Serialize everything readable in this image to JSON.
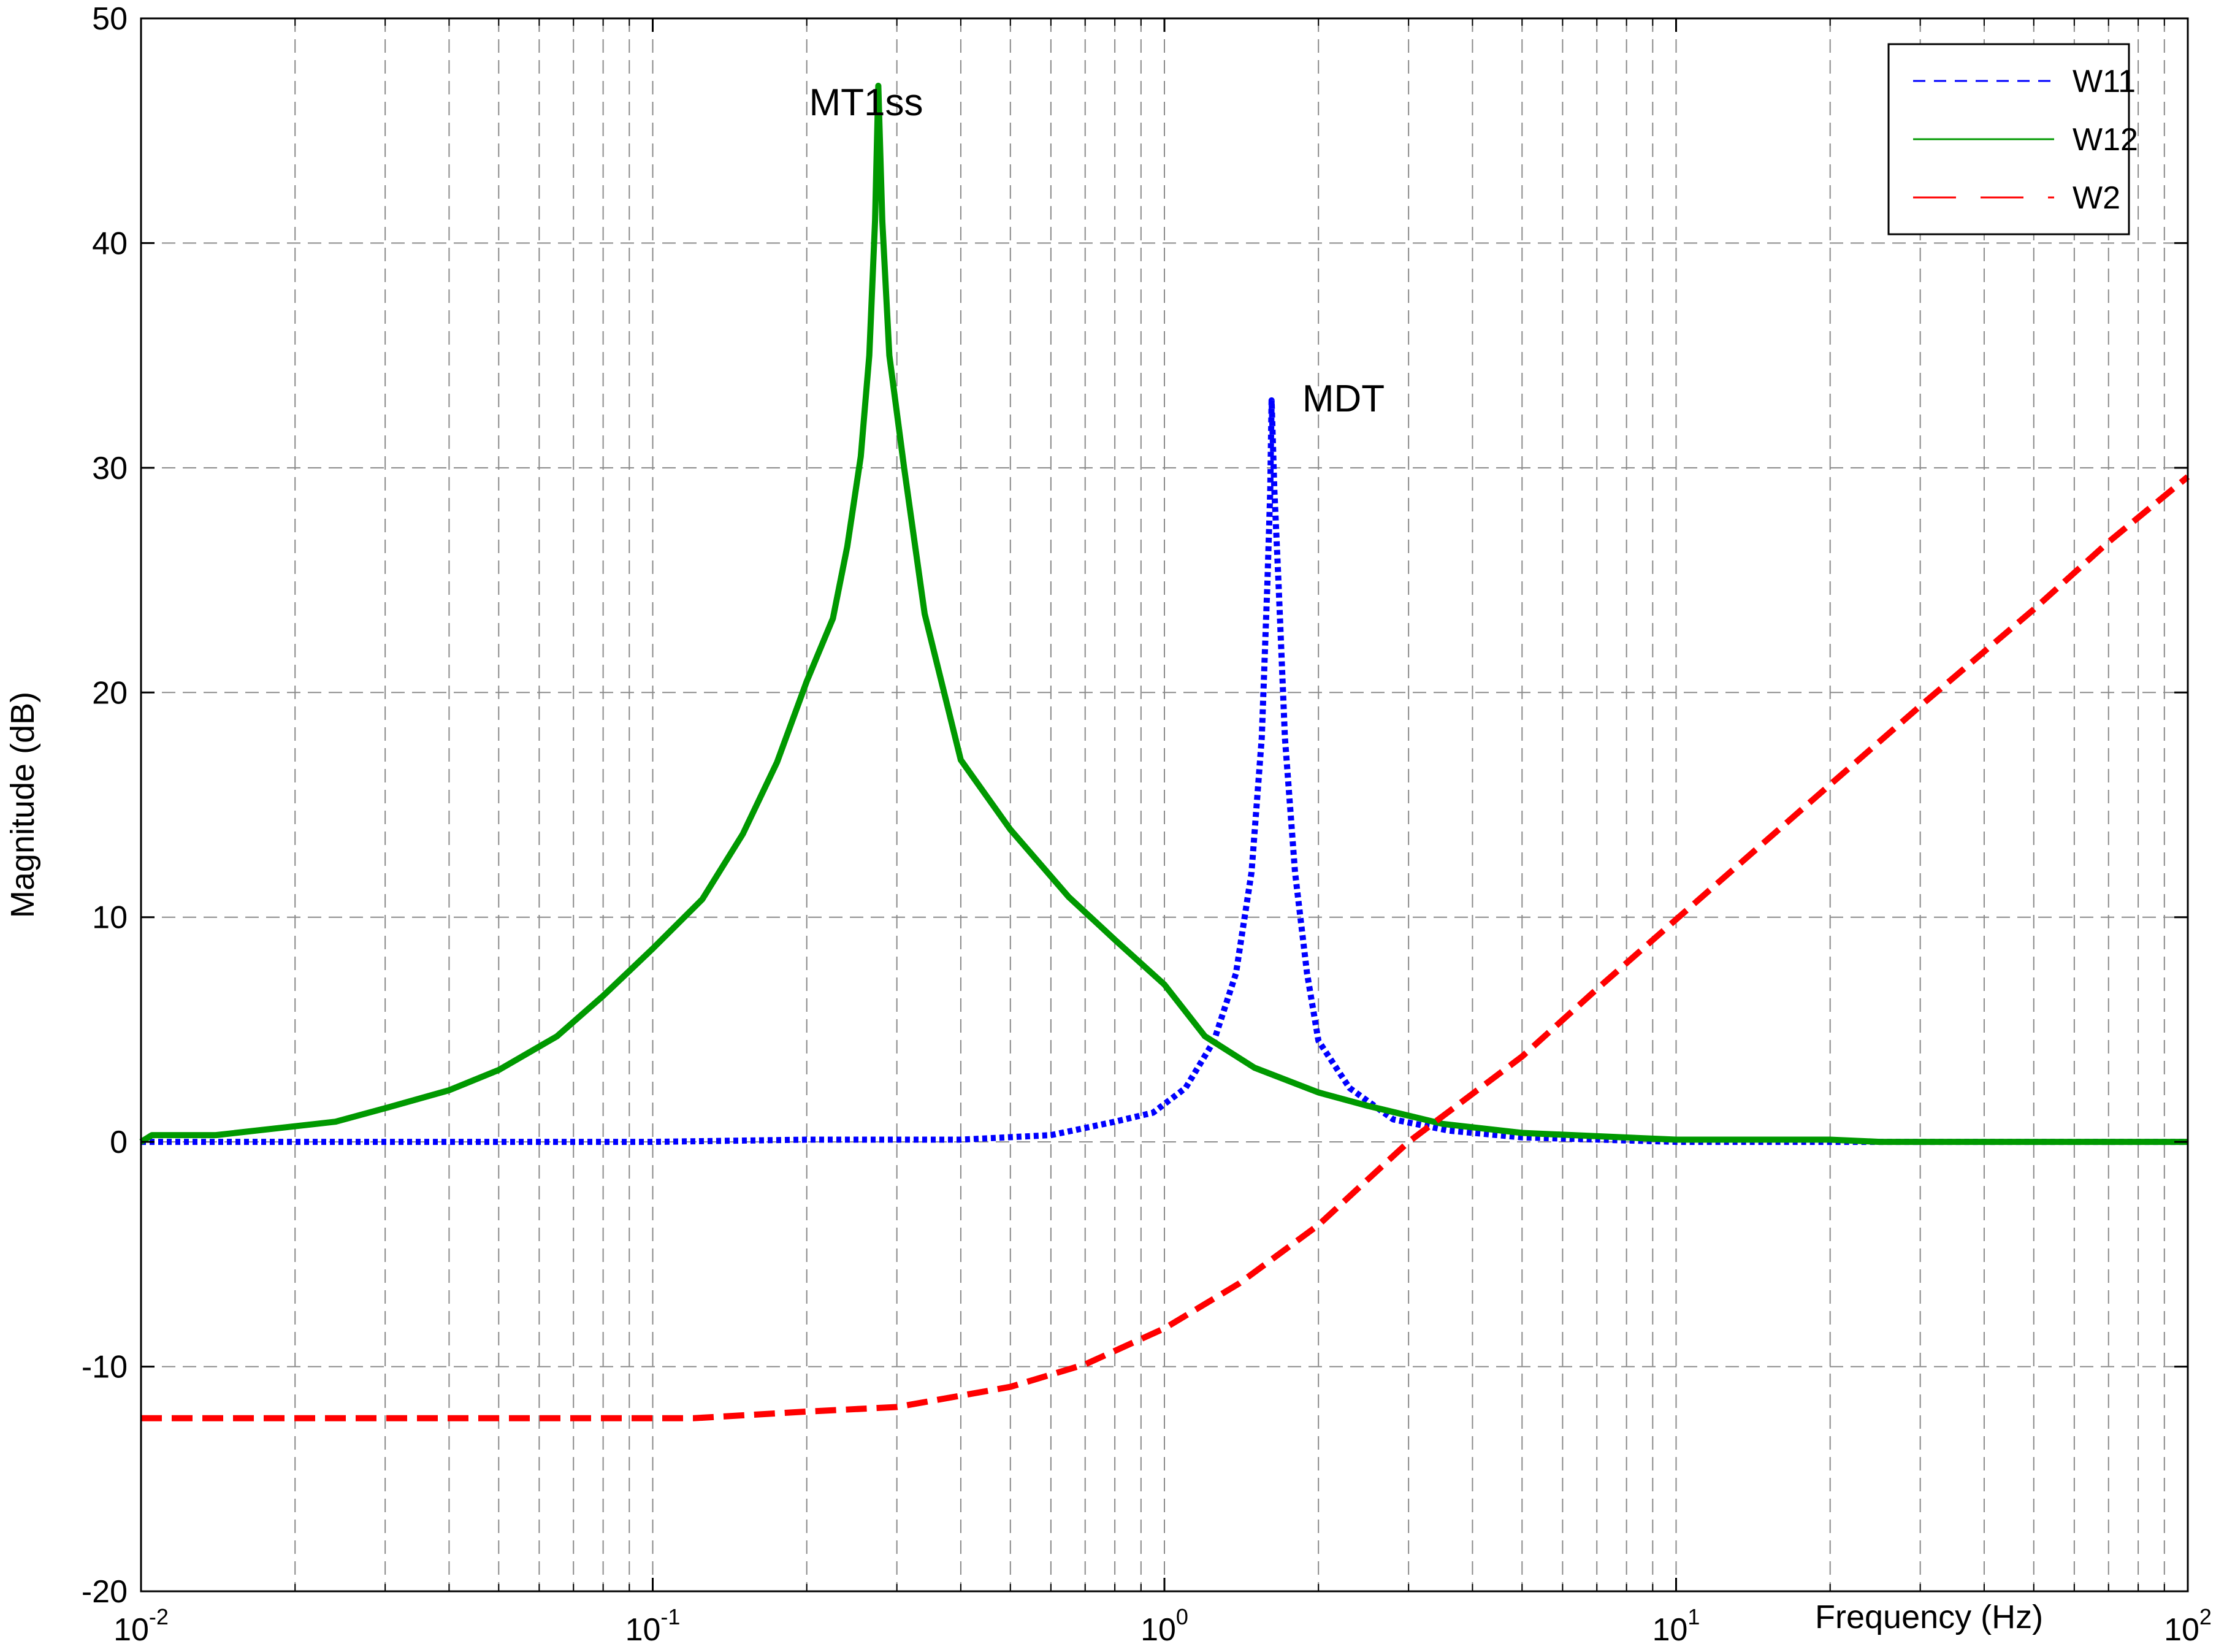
{
  "chart_data": {
    "type": "line",
    "title": "",
    "xlabel": "Frequency  (Hz)",
    "ylabel": "Magnitude (dB)",
    "xscale": "log",
    "xlim": [
      0.01,
      100
    ],
    "ylim": [
      -20,
      50
    ],
    "grid": true,
    "legend_position": "top-right",
    "x_ticks": [
      {
        "value": 0.01,
        "base": "10",
        "exp": "-2"
      },
      {
        "value": 0.1,
        "base": "10",
        "exp": "-1"
      },
      {
        "value": 1,
        "base": "10",
        "exp": "0"
      },
      {
        "value": 10,
        "base": "10",
        "exp": "1"
      },
      {
        "value": 100,
        "base": "10",
        "exp": "2"
      }
    ],
    "y_ticks": [
      {
        "value": -20,
        "label": "-20"
      },
      {
        "value": -10,
        "label": "-10"
      },
      {
        "value": 0,
        "label": "0"
      },
      {
        "value": 10,
        "label": "10"
      },
      {
        "value": 20,
        "label": "20"
      },
      {
        "value": 30,
        "label": "30"
      },
      {
        "value": 40,
        "label": "40"
      },
      {
        "value": 50,
        "label": "50"
      }
    ],
    "series": [
      {
        "name": "W11",
        "color": "#0000ff",
        "style": "dotted",
        "points": [
          [
            0.01,
            0.0
          ],
          [
            0.03,
            0.0
          ],
          [
            0.1,
            0.0
          ],
          [
            0.2,
            0.1
          ],
          [
            0.4,
            0.1
          ],
          [
            0.6,
            0.3
          ],
          [
            0.8,
            0.9
          ],
          [
            0.95,
            1.3
          ],
          [
            1.1,
            2.4
          ],
          [
            1.25,
            4.5
          ],
          [
            1.38,
            7.5
          ],
          [
            1.48,
            12.0
          ],
          [
            1.55,
            18.0
          ],
          [
            1.59,
            25.0
          ],
          [
            1.61,
            29.0
          ],
          [
            1.62,
            33.0
          ],
          [
            1.64,
            29.0
          ],
          [
            1.67,
            25.0
          ],
          [
            1.72,
            18.0
          ],
          [
            1.8,
            12.0
          ],
          [
            1.9,
            7.5
          ],
          [
            2.0,
            4.5
          ],
          [
            2.3,
            2.4
          ],
          [
            2.8,
            1.0
          ],
          [
            3.6,
            0.5
          ],
          [
            5.0,
            0.2
          ],
          [
            10,
            0.0
          ],
          [
            100,
            0.0
          ]
        ]
      },
      {
        "name": "W12",
        "color": "#009900",
        "style": "solid",
        "points": [
          [
            0.01,
            0.0
          ],
          [
            0.0105,
            0.3
          ],
          [
            0.014,
            0.3
          ],
          [
            0.024,
            0.9
          ],
          [
            0.03,
            1.5
          ],
          [
            0.04,
            2.3
          ],
          [
            0.05,
            3.2
          ],
          [
            0.065,
            4.7
          ],
          [
            0.08,
            6.5
          ],
          [
            0.1,
            8.6
          ],
          [
            0.125,
            10.8
          ],
          [
            0.15,
            13.7
          ],
          [
            0.175,
            16.9
          ],
          [
            0.2,
            20.5
          ],
          [
            0.225,
            23.3
          ],
          [
            0.24,
            26.5
          ],
          [
            0.255,
            30.5
          ],
          [
            0.265,
            35.0
          ],
          [
            0.272,
            41.0
          ],
          [
            0.276,
            47.0
          ],
          [
            0.281,
            41.0
          ],
          [
            0.29,
            35.0
          ],
          [
            0.31,
            30.0
          ],
          [
            0.34,
            23.5
          ],
          [
            0.4,
            17.0
          ],
          [
            0.5,
            13.9
          ],
          [
            0.65,
            10.9
          ],
          [
            0.8,
            9.0
          ],
          [
            1.0,
            7.0
          ],
          [
            1.2,
            4.7
          ],
          [
            1.5,
            3.3
          ],
          [
            2.0,
            2.2
          ],
          [
            2.5,
            1.6
          ],
          [
            3.5,
            0.8
          ],
          [
            5.0,
            0.4
          ],
          [
            10,
            0.1
          ],
          [
            20,
            0.1
          ],
          [
            25,
            0.0
          ],
          [
            100,
            0.0
          ]
        ]
      },
      {
        "name": "W2",
        "color": "#ff0000",
        "style": "dashed",
        "points": [
          [
            0.01,
            -12.3
          ],
          [
            0.03,
            -12.3
          ],
          [
            0.12,
            -12.3
          ],
          [
            0.2,
            -12.0
          ],
          [
            0.3,
            -11.8
          ],
          [
            0.5,
            -10.9
          ],
          [
            0.7,
            -9.9
          ],
          [
            1.0,
            -8.3
          ],
          [
            1.4,
            -6.3
          ],
          [
            2.0,
            -3.7
          ],
          [
            3.0,
            0.0
          ],
          [
            5.0,
            3.8
          ],
          [
            7.0,
            6.8
          ],
          [
            10,
            9.9
          ],
          [
            20,
            15.9
          ],
          [
            30,
            19.4
          ],
          [
            50,
            23.7
          ],
          [
            70,
            26.7
          ],
          [
            100,
            29.6
          ]
        ]
      }
    ],
    "annotations": [
      {
        "text": "MT1ss",
        "x": 0.276,
        "y": 47.0
      },
      {
        "text": "MDT",
        "x": 1.62,
        "y": 33.0
      }
    ]
  }
}
